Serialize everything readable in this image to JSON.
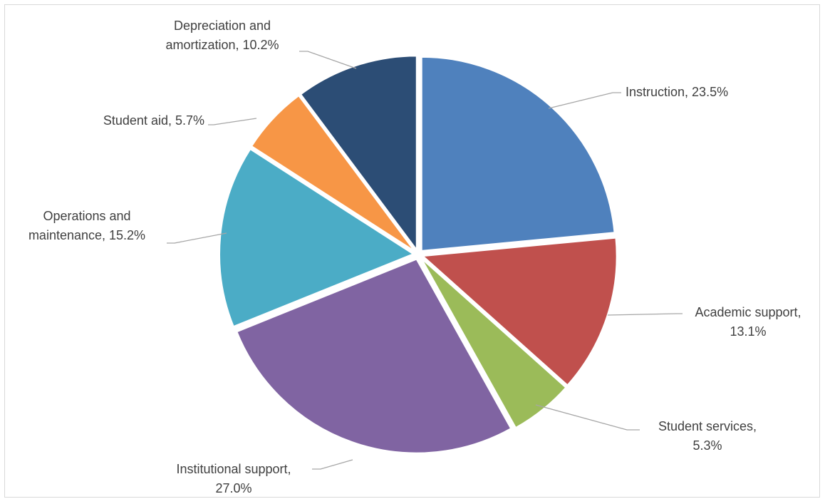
{
  "chart_data": {
    "type": "pie",
    "slices": [
      {
        "label": "Instruction",
        "value": 23.5,
        "display": "Instruction, 23.5%",
        "lines": [
          "Instruction, 23.5%"
        ],
        "color": "#4f81bd"
      },
      {
        "label": "Academic support",
        "value": 13.1,
        "display": "Academic support, 13.1%",
        "lines": [
          "Academic support,",
          "13.1%"
        ],
        "color": "#c0504d"
      },
      {
        "label": "Student services",
        "value": 5.3,
        "display": "Student services, 5.3%",
        "lines": [
          "Student services,",
          "5.3%"
        ],
        "color": "#9bbb59"
      },
      {
        "label": "Institutional support",
        "value": 27.0,
        "display": "Institutional support, 27.0%",
        "lines": [
          "Institutional support,",
          "27.0%"
        ],
        "color": "#8064a2"
      },
      {
        "label": "Operations and maintenance",
        "value": 15.2,
        "display": "Operations and maintenance, 15.2%",
        "lines": [
          "Operations and",
          "maintenance, 15.2%"
        ],
        "color": "#4bacc6"
      },
      {
        "label": "Student aid",
        "value": 5.7,
        "display": "Student aid, 5.7%",
        "lines": [
          "Student aid, 5.7%"
        ],
        "color": "#f79646"
      },
      {
        "label": "Depreciation and amortization",
        "value": 10.2,
        "display": "Depreciation and amortization, 10.2%",
        "lines": [
          "Depreciation and",
          "amortization, 10.2%"
        ],
        "color": "#2c4d75"
      }
    ],
    "start_angle": "12 o'clock",
    "direction": "clockwise",
    "exploded": true,
    "legend": "none",
    "labels": "outside with leader lines"
  }
}
